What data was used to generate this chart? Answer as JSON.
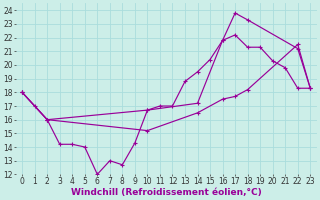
{
  "background_color": "#cceee8",
  "grid_color": "#aadddd",
  "line_color": "#990099",
  "xlim": [
    -0.5,
    23.5
  ],
  "ylim": [
    12,
    24.5
  ],
  "xticks": [
    0,
    1,
    2,
    3,
    4,
    5,
    6,
    7,
    8,
    9,
    10,
    11,
    12,
    13,
    14,
    15,
    16,
    17,
    18,
    19,
    20,
    21,
    22,
    23
  ],
  "yticks": [
    12,
    13,
    14,
    15,
    16,
    17,
    18,
    19,
    20,
    21,
    22,
    23,
    24
  ],
  "xlabel": "Windchill (Refroidissement éolien,°C)",
  "xlabel_fontsize": 6.5,
  "tick_fontsize": 5.5,
  "line1_x": [
    0,
    1,
    2,
    3,
    4,
    5,
    6,
    7,
    8,
    9,
    10,
    11,
    12,
    13,
    14,
    15,
    16,
    17,
    18,
    19,
    20,
    21,
    22,
    23
  ],
  "line1_y": [
    18,
    17,
    16,
    14.2,
    14.2,
    14.0,
    12.0,
    13.0,
    12.7,
    14.3,
    16.7,
    17.0,
    17.0,
    18.8,
    19.5,
    20.4,
    21.8,
    22.2,
    21.3,
    21.3,
    20.3,
    19.8,
    18.3,
    18.3
  ],
  "line2_x": [
    0,
    2,
    10,
    14,
    16,
    17,
    18,
    22,
    23
  ],
  "line2_y": [
    18,
    16,
    16.7,
    17.2,
    21.8,
    23.8,
    23.3,
    21.2,
    18.3
  ],
  "line3_x": [
    0,
    2,
    10,
    14,
    16,
    17,
    18,
    22,
    23
  ],
  "line3_y": [
    18,
    16,
    15.2,
    16.5,
    17.5,
    17.7,
    18.2,
    21.5,
    18.3
  ]
}
